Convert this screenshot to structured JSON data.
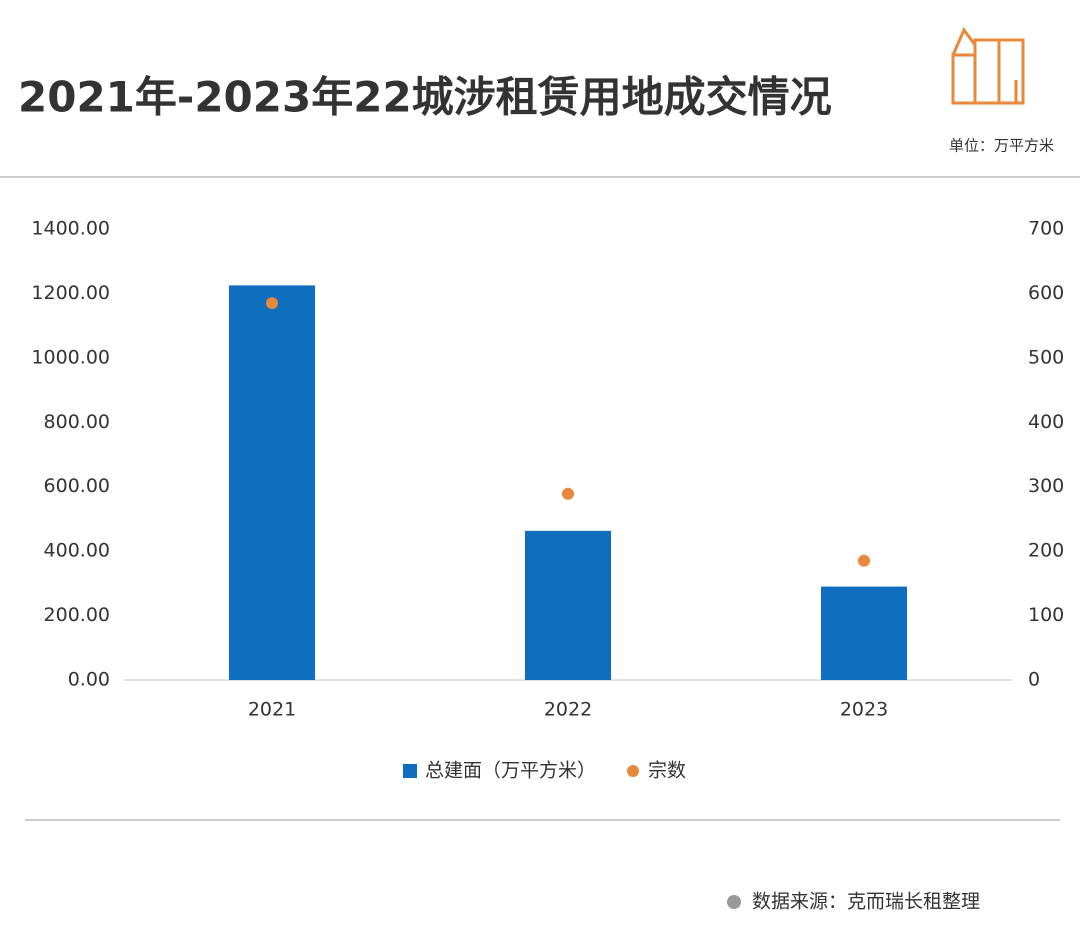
{
  "chart_data": {
    "type": "bar",
    "title": "2021年-2023年22城涉租赁用地成交情况",
    "unit": "单位：万平方米",
    "source": "数据来源：克而瑞长租整理",
    "categories": [
      "2021",
      "2022",
      "2023"
    ],
    "series": [
      {
        "name": "总建面（万平方米）",
        "type": "bar",
        "color": "#0f6ebe",
        "values": [
          1225,
          463,
          290
        ]
      },
      {
        "name": "宗数",
        "type": "scatter",
        "axis": "y2",
        "color": "#e8883a",
        "values": [
          585,
          289,
          185
        ]
      }
    ],
    "ylim": [
      0,
      1400
    ],
    "yticks": [
      {
        "value": 0,
        "label": "0.00"
      },
      {
        "value": 200,
        "label": "200.00"
      },
      {
        "value": 400,
        "label": "400.00"
      },
      {
        "value": 600,
        "label": "600.00"
      },
      {
        "value": 800,
        "label": "800.00"
      },
      {
        "value": 1000,
        "label": "1000.00"
      },
      {
        "value": 1200,
        "label": "1200.00"
      },
      {
        "value": 1400,
        "label": "1400.00"
      }
    ],
    "y2lim": [
      0,
      700
    ],
    "y2ticks": [
      0,
      100,
      200,
      300,
      400,
      500,
      600,
      700
    ],
    "legend": "bottom"
  }
}
